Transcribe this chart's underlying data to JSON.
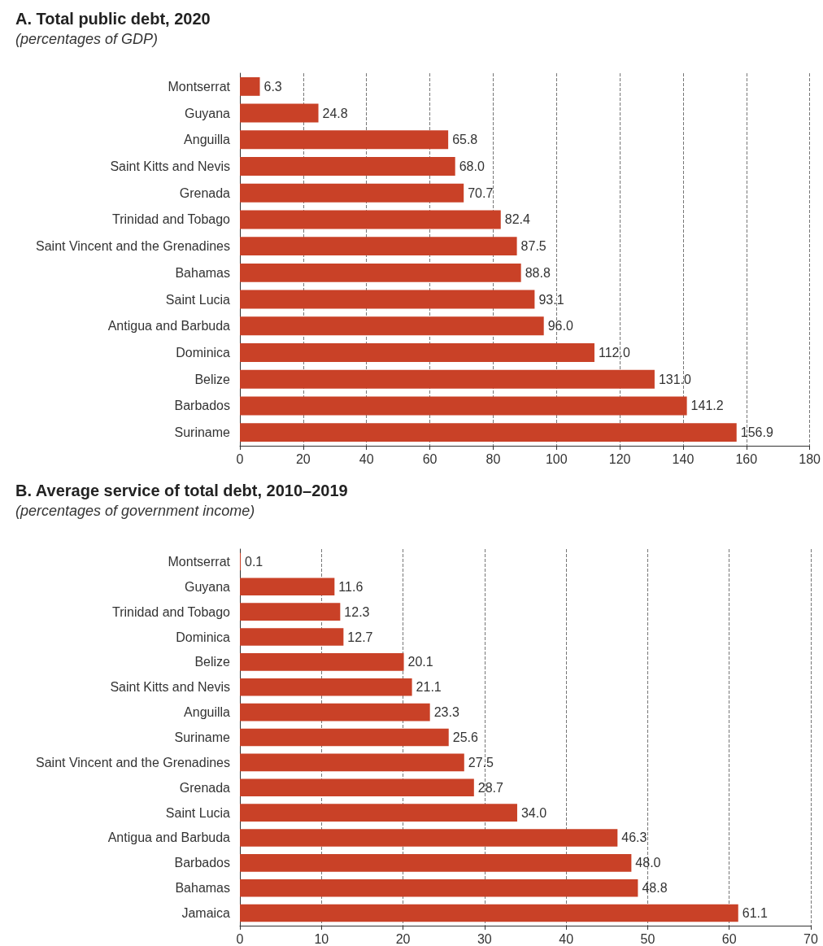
{
  "chart_data": [
    {
      "type": "bar",
      "orientation": "horizontal",
      "title": "A. Total public debt, 2020",
      "subtitle": "(percentages of GDP)",
      "categories": [
        "Montserrat",
        "Guyana",
        "Anguilla",
        "Saint Kitts and Nevis",
        "Grenada",
        "Trinidad and Tobago",
        "Saint Vincent and the Grenadines",
        "Bahamas",
        "Saint Lucia",
        "Antigua and Barbuda",
        "Dominica",
        "Belize",
        "Barbados",
        "Suriname"
      ],
      "series": [
        {
          "color": "#c94127",
          "values": [
            6.3,
            24.8,
            65.8,
            68.0,
            70.7,
            82.4,
            87.5,
            88.8,
            93.1,
            96.0,
            112.0,
            131.0,
            141.2,
            156.9
          ],
          "value_labels": [
            "6.3",
            "24.8",
            "65.8",
            "68.0",
            "70.7",
            "82.4",
            "87.5",
            "88.8",
            "93.1",
            "96.0",
            "112.0",
            "131.0",
            "141.2",
            "156.9"
          ]
        }
      ],
      "xlim": [
        0,
        180
      ],
      "xticks": [
        0,
        20,
        40,
        60,
        80,
        100,
        120,
        140,
        160,
        180
      ],
      "grid": "x"
    },
    {
      "type": "bar",
      "orientation": "horizontal",
      "title": "B. Average service of total debt, 2010–2019",
      "subtitle": "(percentages of government income)",
      "categories": [
        "Montserrat",
        "Guyana",
        "Trinidad and Tobago",
        "Dominica",
        "Belize",
        "Saint Kitts and Nevis",
        "Anguilla",
        "Suriname",
        "Saint Vincent and the Grenadines",
        "Grenada",
        "Saint Lucia",
        "Antigua and Barbuda",
        "Barbados",
        "Bahamas",
        "Jamaica"
      ],
      "series": [
        {
          "color": "#c94127",
          "values": [
            0.1,
            11.6,
            12.3,
            12.7,
            20.1,
            21.1,
            23.3,
            25.6,
            27.5,
            28.7,
            34.0,
            46.3,
            48.0,
            48.8,
            61.1
          ],
          "value_labels": [
            "0.1",
            "11.6",
            "12.3",
            "12.7",
            "20.1",
            "21.1",
            "23.3",
            "25.6",
            "27.5",
            "28.7",
            "34.0",
            "46.3",
            "48.0",
            "48.8",
            "61.1"
          ]
        }
      ],
      "xlim": [
        0,
        70
      ],
      "xticks": [
        0,
        10,
        20,
        30,
        40,
        50,
        60,
        70
      ],
      "grid": "x"
    }
  ]
}
